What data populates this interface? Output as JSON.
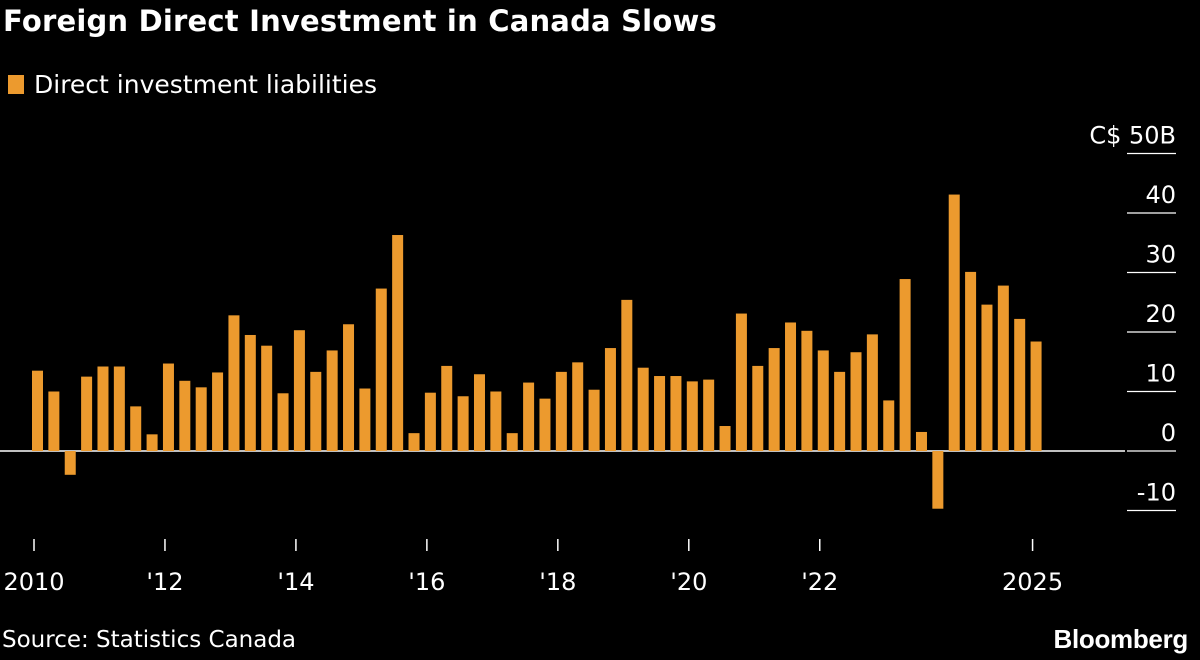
{
  "chart_data": {
    "type": "bar",
    "title": "Foreign Direct Investment in Canada Slows",
    "series": [
      {
        "name": "Direct investment liabilities",
        "color": "#ec9a2e",
        "x": [
          "2010Q1",
          "2010Q2",
          "2010Q3",
          "2010Q4",
          "2011Q1",
          "2011Q2",
          "2011Q3",
          "2011Q4",
          "2012Q1",
          "2012Q2",
          "2012Q3",
          "2012Q4",
          "2013Q1",
          "2013Q2",
          "2013Q3",
          "2013Q4",
          "2014Q1",
          "2014Q2",
          "2014Q3",
          "2014Q4",
          "2015Q1",
          "2015Q2",
          "2015Q3",
          "2015Q4",
          "2016Q1",
          "2016Q2",
          "2016Q3",
          "2016Q4",
          "2017Q1",
          "2017Q2",
          "2017Q3",
          "2017Q4",
          "2018Q1",
          "2018Q2",
          "2018Q3",
          "2018Q4",
          "2019Q1",
          "2019Q2",
          "2019Q3",
          "2019Q4",
          "2020Q1",
          "2020Q2",
          "2020Q3",
          "2020Q4",
          "2021Q1",
          "2021Q2",
          "2021Q3",
          "2021Q4",
          "2022Q1",
          "2022Q2",
          "2022Q3",
          "2022Q4",
          "2023Q1",
          "2023Q2",
          "2023Q3",
          "2023Q4",
          "2024Q1",
          "2024Q2",
          "2024Q3",
          "2024Q4",
          "2025Q1",
          "2025Q2"
        ],
        "values": [
          13.5,
          10.0,
          -4.0,
          12.5,
          14.2,
          14.2,
          7.5,
          2.8,
          14.7,
          11.8,
          10.7,
          13.2,
          22.8,
          19.5,
          17.7,
          9.7,
          20.3,
          13.3,
          16.9,
          21.3,
          10.5,
          27.3,
          36.3,
          3.0,
          9.8,
          14.3,
          9.2,
          12.9,
          10.0,
          3.0,
          11.5,
          8.8,
          13.3,
          14.9,
          10.3,
          17.3,
          25.4,
          14.0,
          12.6,
          12.6,
          11.7,
          12.0,
          4.2,
          23.1,
          14.3,
          17.3,
          21.6,
          20.2,
          16.9,
          13.3,
          16.6,
          19.6,
          8.5,
          28.9,
          3.2,
          -9.7,
          43.1,
          30.1,
          24.6,
          27.8,
          22.2,
          18.4
        ]
      }
    ],
    "xlabel": "",
    "ylabel": "C$ 50B",
    "ylim": [
      -10,
      50
    ],
    "yticks": [
      50,
      40,
      30,
      20,
      10,
      0,
      -10
    ],
    "ytick_labels": [
      "C$ 50B",
      "40",
      "30",
      "20",
      "10",
      "0",
      "-10"
    ],
    "xticks": [
      {
        "year": 2010,
        "label": "2010"
      },
      {
        "year": 2012,
        "label": "'12"
      },
      {
        "year": 2014,
        "label": "'14"
      },
      {
        "year": 2016,
        "label": "'16"
      },
      {
        "year": 2018,
        "label": "'18"
      },
      {
        "year": 2020,
        "label": "'20"
      },
      {
        "year": 2022,
        "label": "'22"
      },
      {
        "year": 2025.25,
        "label": "2025"
      }
    ],
    "legend_position": "top-left",
    "grid": true
  },
  "legend": {
    "label": "Direct investment liabilities",
    "color": "#ec9a2e"
  },
  "footer": {
    "source": "Source: Statistics Canada",
    "brand": "Bloomberg"
  },
  "colors": {
    "background": "#000000",
    "bar": "#ec9a2e",
    "text": "#ffffff",
    "grid": "#ffffff"
  }
}
